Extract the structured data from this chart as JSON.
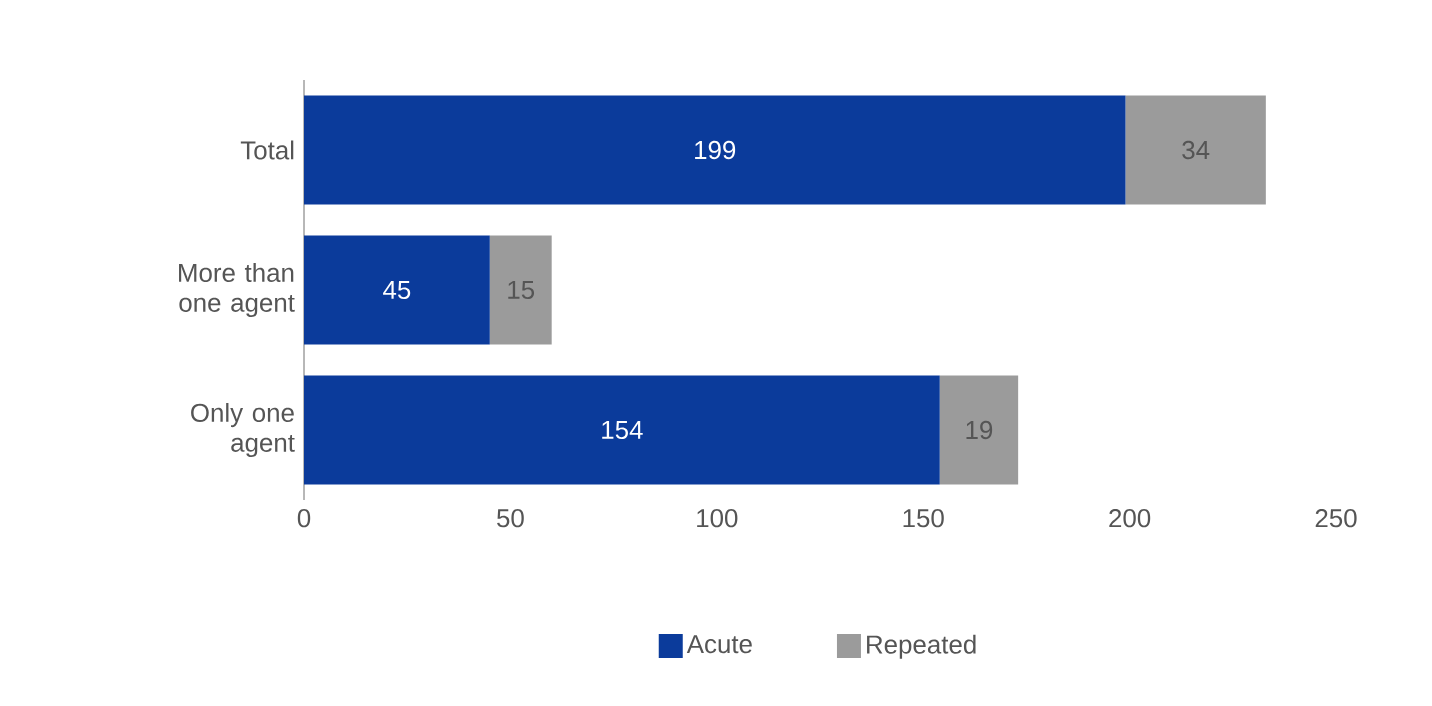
{
  "chart_data": {
    "type": "bar",
    "orientation": "horizontal",
    "stacked": true,
    "categories": [
      "Total",
      "More than one agent",
      "Only one agent"
    ],
    "series": [
      {
        "name": "Acute",
        "color": "#0b3b9b",
        "values": [
          199,
          45,
          154
        ]
      },
      {
        "name": "Repeated",
        "color": "#9b9b9b",
        "values": [
          34,
          15,
          19
        ]
      }
    ],
    "xlim": [
      0,
      250
    ],
    "xticks": [
      0,
      50,
      100,
      150,
      200,
      250
    ],
    "data_labels": true,
    "legend": "bottom"
  }
}
